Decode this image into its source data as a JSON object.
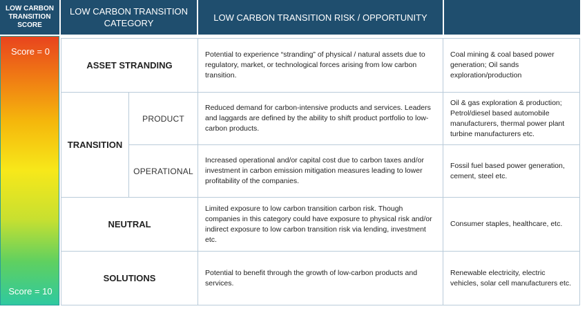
{
  "header": {
    "score_col": "LOW CARBON TRANSITION SCORE",
    "category_col": "LOW CARBON TRANSITION CATEGORY",
    "risk_col": "LOW CARBON TRANSITION RISK / OPPORTUNITY",
    "examples_col": ""
  },
  "score": {
    "top_label": "Score = 0",
    "bottom_label": "Score = 10",
    "gradient_colors": [
      "#e8441e",
      "#f07a14",
      "#f5b80c",
      "#f7e81a",
      "#c8e030",
      "#5fd060",
      "#2fc9a0"
    ]
  },
  "rows": {
    "asset_stranding": {
      "category": "ASSET STRANDING",
      "description": "Potential to experience “stranding” of physical / natural assets due to regulatory, market, or technological forces arising from low carbon transition.",
      "examples": "Coal mining & coal based power generation; Oil sands exploration/production"
    },
    "transition": {
      "category": "TRANSITION",
      "product": {
        "subcategory": "PRODUCT",
        "description": "Reduced demand for carbon-intensive products and services. Leaders and laggards are defined by the ability to shift product portfolio to low-carbon products.",
        "examples": "Oil & gas exploration & production; Petrol/diesel based automobile manufacturers, thermal power plant turbine manufacturers etc."
      },
      "operational": {
        "subcategory": "OPERATIONAL",
        "description": "Increased operational and/or capital cost due to carbon taxes and/or investment in carbon emission mitigation measures leading to lower profitability of the companies.",
        "examples": "Fossil fuel based power generation, cement, steel etc."
      }
    },
    "neutral": {
      "category": "NEUTRAL",
      "description": "Limited exposure to low carbon transition carbon risk. Though companies in this category could have exposure to physical risk and/or indirect exposure to low carbon transition risk via lending, investment etc.",
      "examples": "Consumer staples, healthcare, etc."
    },
    "solutions": {
      "category": "SOLUTIONS",
      "description": "Potential to benefit through the growth of low-carbon products and services.",
      "examples": "Renewable electricity, electric vehicles, solar cell manufacturers etc."
    }
  },
  "colors": {
    "header_bg": "#1f4e6e",
    "border": "#b9cbd9"
  }
}
